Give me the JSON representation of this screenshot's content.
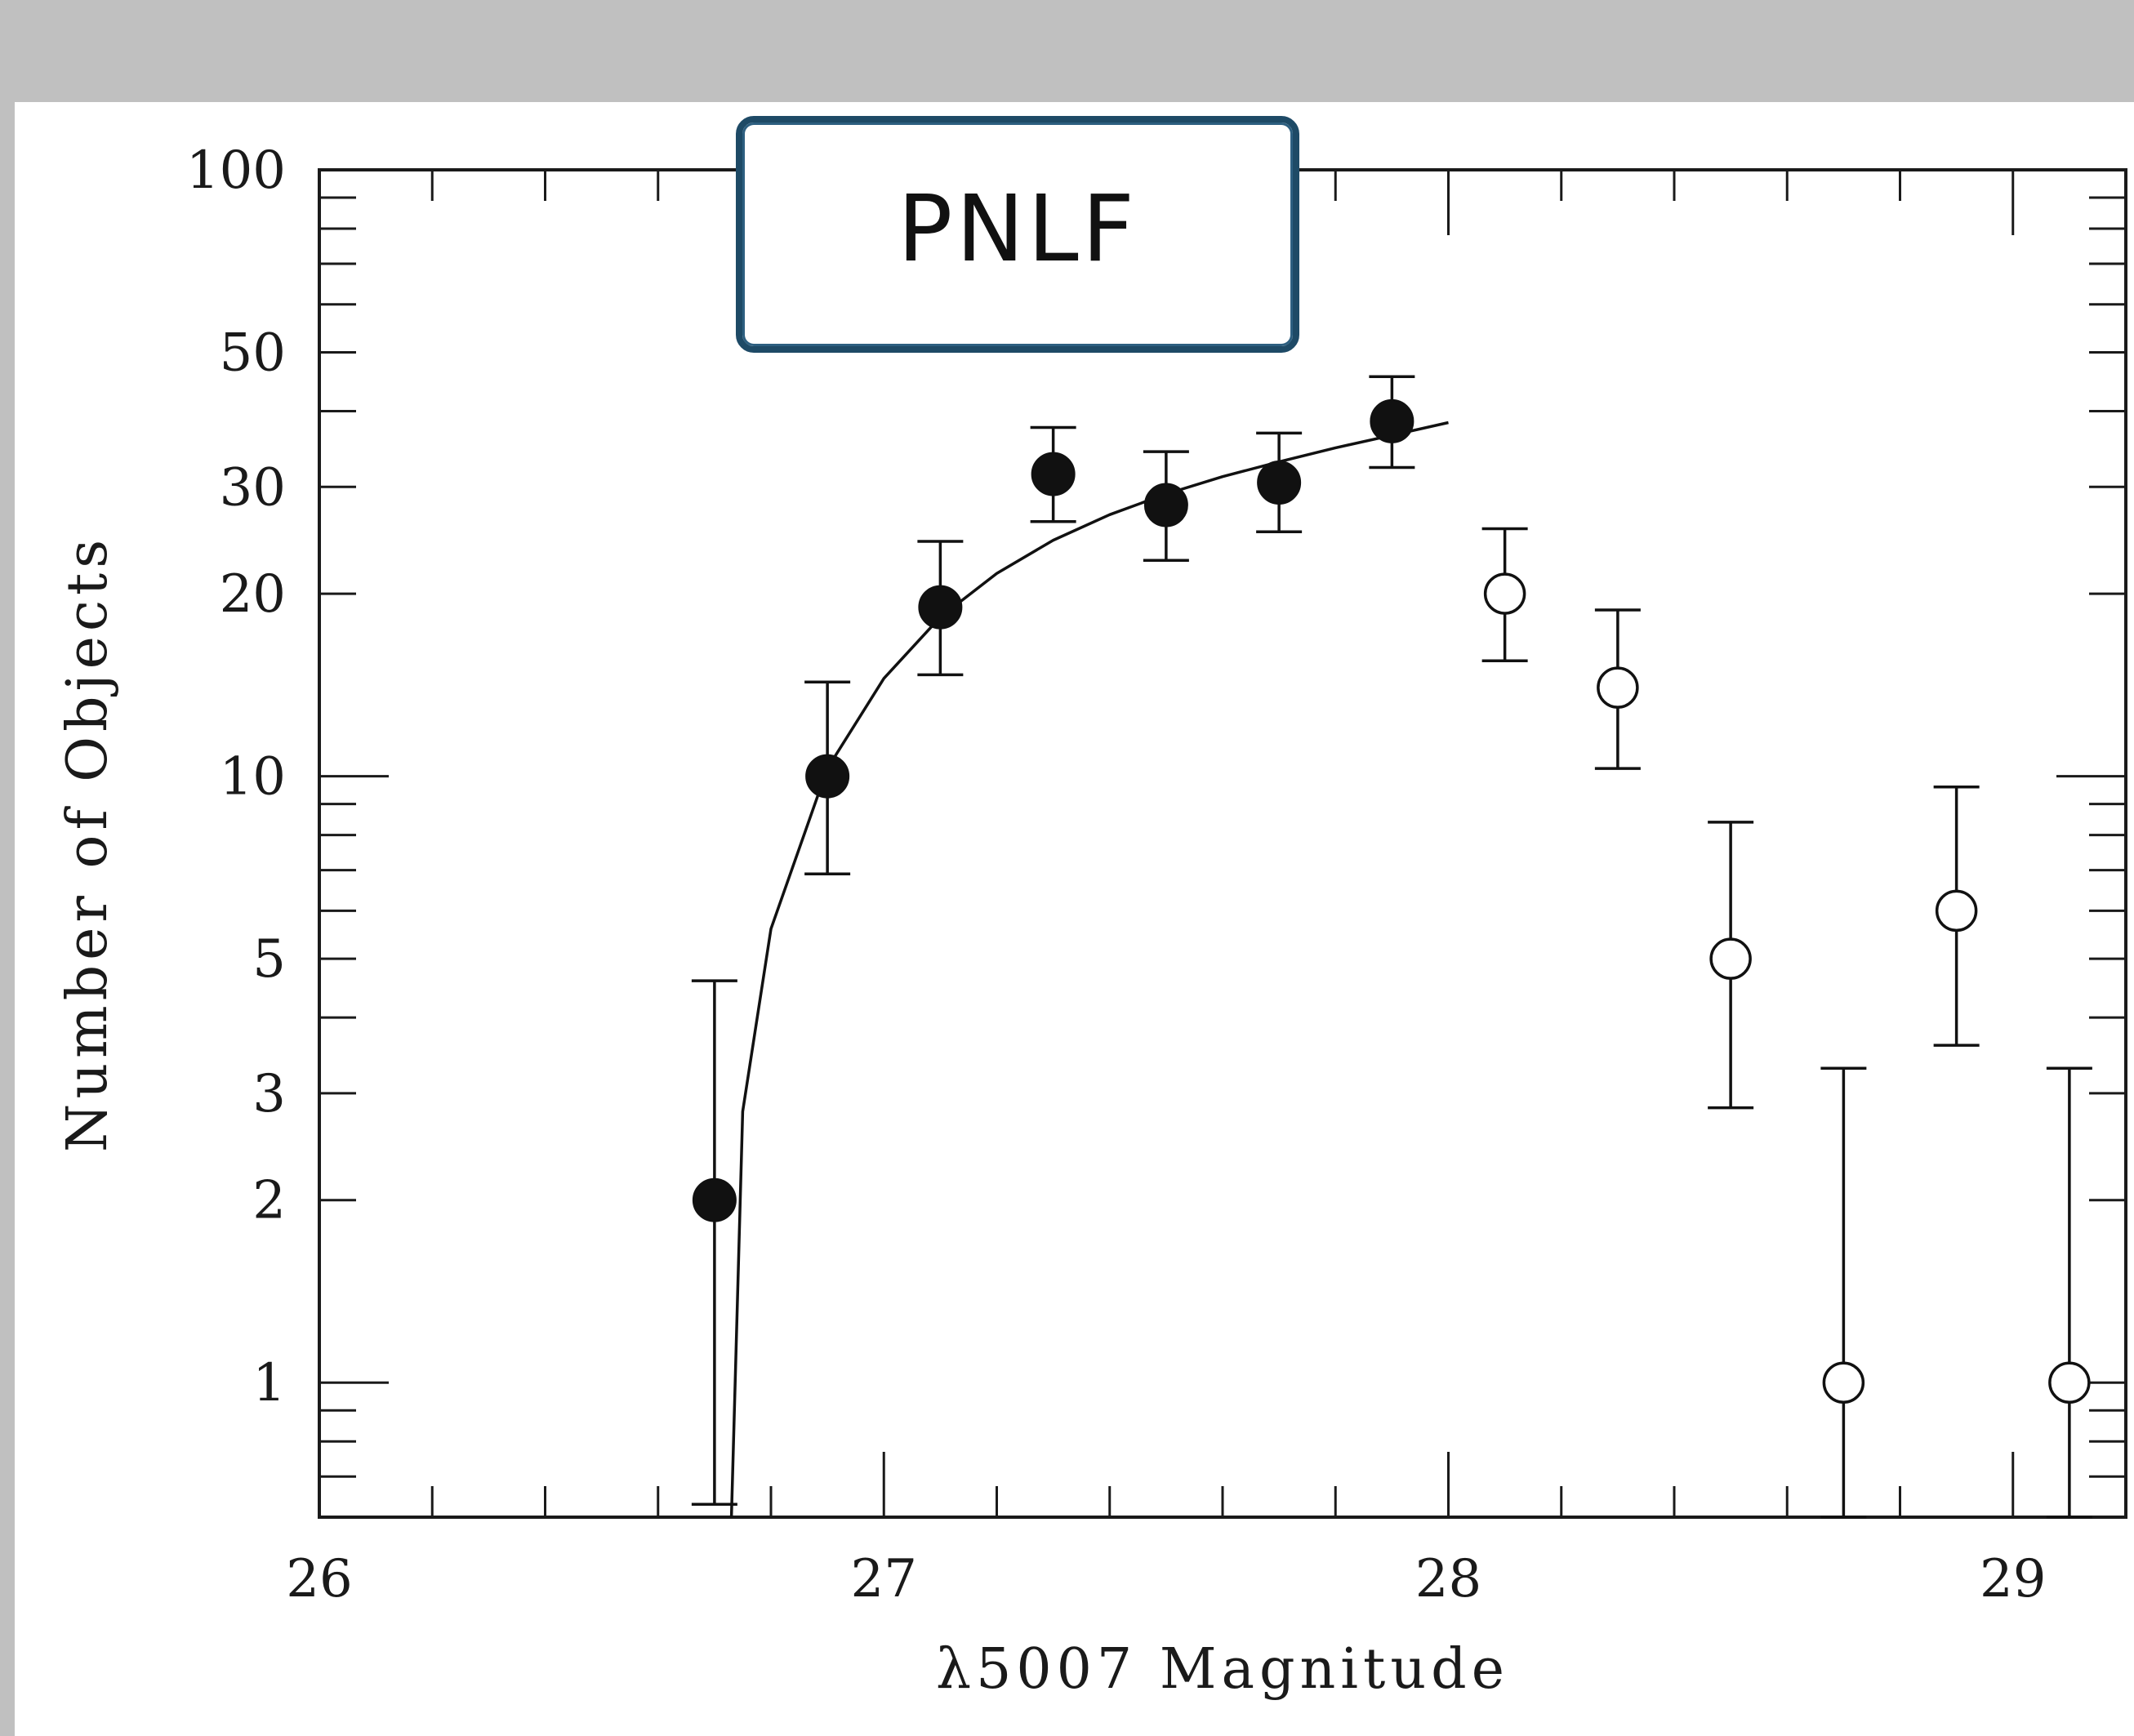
{
  "header": {
    "title": "PNLF"
  },
  "chart_data": {
    "type": "scatter",
    "title": "PNLF",
    "xlabel": "λ5007 Magnitude",
    "ylabel": "Number of Objects",
    "xlim": [
      26,
      29.2
    ],
    "ylim": [
      0.6,
      100
    ],
    "y_scale": "log",
    "x_ticks": [
      "26",
      "27",
      "28",
      "29"
    ],
    "y_ticks": [
      "100",
      "50",
      "30",
      "20",
      "10",
      "5",
      "3",
      "2",
      "1"
    ],
    "grid": false,
    "series": [
      {
        "marker": "filled-circle",
        "color": "#111111",
        "points": [
          {
            "x": 26.7,
            "y": 2,
            "err_low": 0.63,
            "err_high": 4.6
          },
          {
            "x": 26.9,
            "y": 10,
            "err_low": 6.9,
            "err_high": 14.3
          },
          {
            "x": 27.1,
            "y": 19,
            "err_low": 14.7,
            "err_high": 24.4
          },
          {
            "x": 27.3,
            "y": 31.5,
            "err_low": 26.3,
            "err_high": 37.6
          },
          {
            "x": 27.5,
            "y": 28,
            "err_low": 22.7,
            "err_high": 34.3
          },
          {
            "x": 27.7,
            "y": 30.5,
            "err_low": 25.3,
            "err_high": 36.8
          },
          {
            "x": 27.9,
            "y": 38.5,
            "err_low": 32.3,
            "err_high": 45.6
          }
        ]
      },
      {
        "marker": "open-circle",
        "color": "#111111",
        "points": [
          {
            "x": 28.1,
            "y": 20,
            "err_low": 15.5,
            "err_high": 25.6
          },
          {
            "x": 28.3,
            "y": 14,
            "err_low": 10.3,
            "err_high": 18.8
          },
          {
            "x": 28.5,
            "y": 5,
            "err_low": 2.84,
            "err_high": 8.4
          },
          {
            "x": 28.7,
            "y": 1,
            "err_low": 0.6,
            "err_high": 3.3
          },
          {
            "x": 28.9,
            "y": 6,
            "err_low": 3.6,
            "err_high": 9.6
          },
          {
            "x": 29.1,
            "y": 1,
            "err_low": 0.6,
            "err_high": 3.3
          }
        ]
      }
    ],
    "fit_curve": {
      "type": "line",
      "color": "#111111",
      "cutoff_m": 26.72,
      "x_end": 28.0,
      "points": [
        {
          "x": 26.73,
          "y": 0.6
        },
        {
          "x": 26.75,
          "y": 2.8
        },
        {
          "x": 26.8,
          "y": 5.6
        },
        {
          "x": 26.9,
          "y": 10.3
        },
        {
          "x": 27.0,
          "y": 14.5
        },
        {
          "x": 27.1,
          "y": 18.3
        },
        {
          "x": 27.2,
          "y": 21.6
        },
        {
          "x": 27.3,
          "y": 24.5
        },
        {
          "x": 27.4,
          "y": 27.0
        },
        {
          "x": 27.5,
          "y": 29.2
        },
        {
          "x": 27.6,
          "y": 31.2
        },
        {
          "x": 27.7,
          "y": 33.0
        },
        {
          "x": 27.8,
          "y": 34.8
        },
        {
          "x": 27.9,
          "y": 36.5
        },
        {
          "x": 28.0,
          "y": 38.3
        }
      ]
    }
  }
}
